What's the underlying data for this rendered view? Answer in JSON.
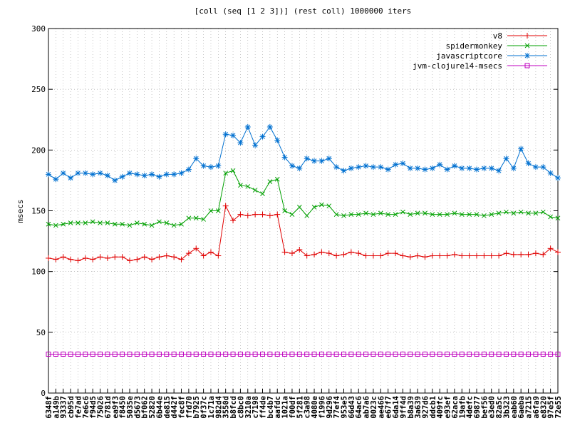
{
  "chart_data": {
    "type": "line",
    "title": "[coll (seq [1 2 3])] (rest coll) 1000000 iters",
    "y_label": "msecs",
    "categories": [
      "6348f",
      "a149b",
      "93337",
      "cb95d",
      "fe7ad",
      "7e6c6",
      "f94d5",
      "75026",
      "6781d",
      "ea9f3",
      "f8450",
      "5035e",
      "d5673",
      "bf062",
      "52820",
      "6b44e",
      "de815",
      "d442f",
      "fec8f",
      "ffd70",
      "b7925",
      "0f37c",
      "1c71a",
      "982d4",
      "3550d",
      "b8fcd",
      "c8bc0",
      "3210a",
      "c7198",
      "ff4de",
      "bc4b7",
      "aafdc",
      "1021a",
      "f00df",
      "5f281",
      "c3a98",
      "4080e",
      "f1996",
      "9d296",
      "77ef4",
      "953e5",
      "66d43",
      "64ac6",
      "ab7a6",
      "0023c",
      "ae466",
      "e67f7",
      "6da14",
      "9ff4d",
      "b8a39",
      "3a639",
      "927d6",
      "ddcb1",
      "409fc",
      "e93ef",
      "62aca",
      "19afb",
      "4defc",
      "69877",
      "bef56",
      "e3ed0",
      "82a5c",
      "3b323",
      "eab60",
      "6aeba",
      "a7215",
      "a6fa9",
      "e8320",
      "97e5f",
      "72e55"
    ],
    "series": [
      {
        "name": "v8",
        "color": "#e00000",
        "marker": "plus",
        "values": [
          111,
          110,
          112,
          110,
          109,
          111,
          110,
          112,
          111,
          112,
          112,
          109,
          110,
          112,
          110,
          112,
          113,
          112,
          110,
          115,
          119,
          113,
          116,
          113,
          154,
          142,
          147,
          146,
          147,
          147,
          146,
          147,
          116,
          115,
          118,
          113,
          114,
          116,
          115,
          113,
          114,
          116,
          115,
          113,
          113,
          113,
          115,
          115,
          113,
          112,
          113,
          112,
          113,
          113,
          113,
          114,
          113,
          113,
          113,
          113,
          113,
          113,
          115,
          114,
          114,
          114,
          115,
          114,
          119,
          116
        ]
      },
      {
        "name": "spidermonkey",
        "color": "#00a000",
        "marker": "cross",
        "values": [
          139,
          138,
          139,
          140,
          140,
          140,
          141,
          140,
          140,
          139,
          139,
          138,
          140,
          139,
          138,
          141,
          140,
          138,
          139,
          144,
          144,
          143,
          150,
          150,
          181,
          183,
          171,
          170,
          167,
          164,
          174,
          176,
          150,
          147,
          153,
          146,
          153,
          155,
          154,
          147,
          146,
          147,
          147,
          148,
          147,
          148,
          147,
          147,
          149,
          147,
          148,
          148,
          147,
          147,
          147,
          148,
          147,
          147,
          147,
          146,
          147,
          148,
          149,
          148,
          149,
          148,
          148,
          149,
          145,
          144
        ]
      },
      {
        "name": "javascriptcore",
        "color": "#0070d0",
        "marker": "star",
        "values": [
          180,
          176,
          181,
          177,
          181,
          181,
          180,
          181,
          179,
          175,
          178,
          181,
          180,
          179,
          180,
          178,
          180,
          180,
          181,
          184,
          193,
          187,
          186,
          187,
          213,
          212,
          206,
          219,
          204,
          211,
          219,
          208,
          194,
          187,
          185,
          193,
          191,
          191,
          193,
          186,
          183,
          185,
          186,
          187,
          186,
          186,
          184,
          188,
          189,
          185,
          185,
          184,
          185,
          188,
          184,
          187,
          185,
          185,
          184,
          185,
          185,
          183,
          193,
          185,
          201,
          189,
          186,
          186,
          181,
          177
        ]
      },
      {
        "name": "jvm-clojure14-msecs",
        "color": "#c000c0",
        "marker": "square",
        "values": [
          32,
          32,
          32,
          32,
          32,
          32,
          32,
          32,
          32,
          32,
          32,
          32,
          32,
          32,
          32,
          32,
          32,
          32,
          32,
          32,
          32,
          32,
          32,
          32,
          32,
          32,
          32,
          32,
          32,
          32,
          32,
          32,
          32,
          32,
          32,
          32,
          32,
          32,
          32,
          32,
          32,
          32,
          32,
          32,
          32,
          32,
          32,
          32,
          32,
          32,
          32,
          32,
          32,
          32,
          32,
          32,
          32,
          32,
          32,
          32,
          32,
          32,
          32,
          32,
          32,
          32,
          32,
          32,
          32,
          32
        ]
      }
    ],
    "ylim": [
      0,
      300
    ],
    "yticks": [
      0,
      50,
      100,
      150,
      200,
      250,
      300
    ],
    "grid": true,
    "legend": "top-right"
  }
}
